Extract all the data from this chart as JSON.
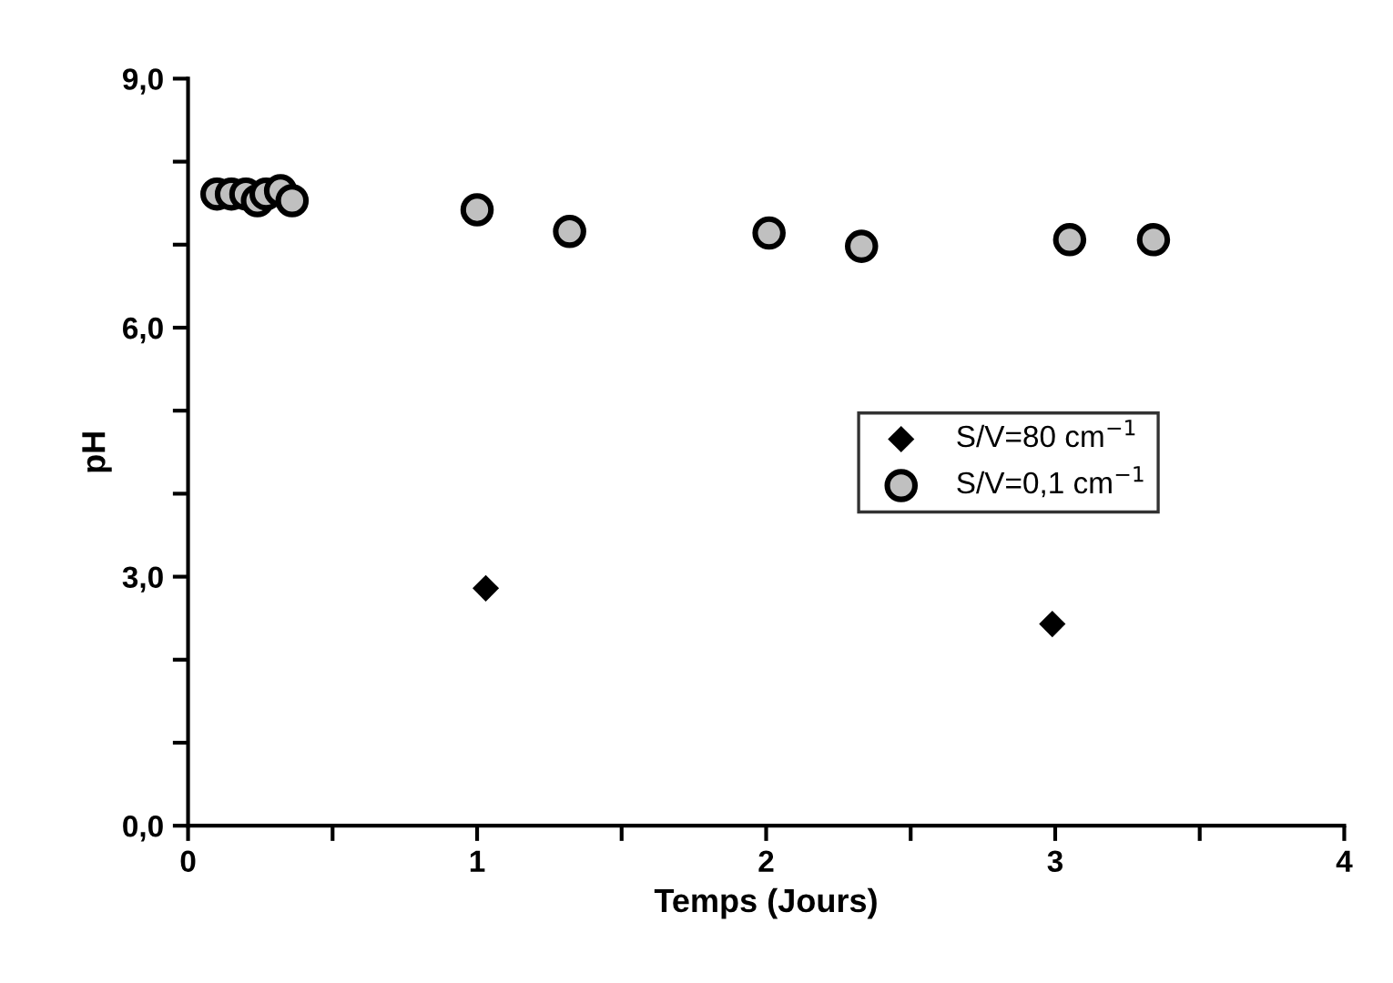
{
  "chart_data": {
    "type": "scatter",
    "xlabel": "Temps (Jours)",
    "ylabel": "pH",
    "xlim": [
      0,
      4
    ],
    "xticks": [
      0,
      1,
      2,
      3,
      4
    ],
    "ylim": [
      0,
      9
    ],
    "yticks": [
      {
        "value": 0,
        "label": "0,0"
      },
      {
        "value": 1,
        "label": null
      },
      {
        "value": 2,
        "label": null
      },
      {
        "value": 3,
        "label": "3,0"
      },
      {
        "value": 4,
        "label": null
      },
      {
        "value": 5,
        "label": null
      },
      {
        "value": 6,
        "label": "6,0"
      },
      {
        "value": 7,
        "label": null
      },
      {
        "value": 8,
        "label": null
      },
      {
        "value": 9,
        "label": "9,0"
      }
    ],
    "grid": false,
    "legend": "right",
    "series": [
      {
        "name": "S/V=80 cm$^{−1}$",
        "color": "#000000",
        "marker": "diamond",
        "x": [
          1.03,
          2.99
        ],
        "values": [
          2.86,
          2.43
        ]
      },
      {
        "name": "S/V=0,1 cm$^{−1}$",
        "color": "#c0c0c0",
        "marker": "circle",
        "x": [
          0.1,
          0.15,
          0.2,
          0.24,
          0.27,
          0.32,
          0.36,
          1.0,
          1.32,
          2.01,
          2.33,
          3.05,
          3.34
        ],
        "values": [
          7.61,
          7.61,
          7.61,
          7.53,
          7.61,
          7.65,
          7.53,
          7.42,
          7.16,
          7.14,
          6.98,
          7.06,
          7.06
        ]
      }
    ]
  }
}
